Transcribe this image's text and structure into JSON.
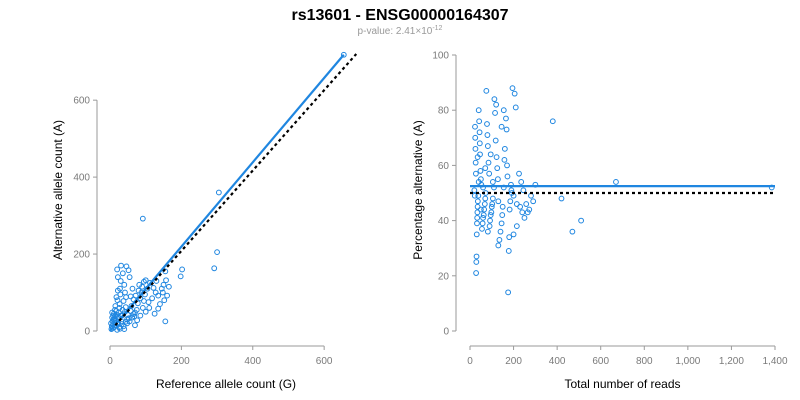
{
  "title": "rs13601 - ENSG00000164307",
  "pvalue_prefix": "p-value: 2.41×10",
  "pvalue_exponent": "-12",
  "colors": {
    "points": "#1f86e0",
    "fit": "#1f86e0",
    "reference": "#000000",
    "axis": "#9a9a9a"
  },
  "chart_data": [
    {
      "type": "scatter",
      "title": "",
      "xlabel": "Reference allele count (G)",
      "ylabel": "Alternative allele count (A)",
      "xlim": [
        0,
        650
      ],
      "ylim": [
        0,
        720
      ],
      "xticks": [
        0,
        200,
        400,
        600
      ],
      "yticks": [
        0,
        200,
        400,
        600
      ],
      "xtick_labels": [
        "0",
        "200",
        "400",
        "600"
      ],
      "ytick_labels": [
        "0",
        "200",
        "400",
        "600"
      ],
      "fit_line": {
        "label": "fitted",
        "x": [
          0,
          655
        ],
        "y": [
          0,
          718
        ]
      },
      "reference_line": {
        "label": "expected",
        "x": [
          15,
          690
        ],
        "y": [
          15,
          720
        ]
      },
      "points": [
        [
          655,
          718
        ],
        [
          305,
          360
        ],
        [
          92,
          292
        ],
        [
          300,
          205
        ],
        [
          292,
          163
        ],
        [
          202,
          160
        ],
        [
          198,
          142
        ],
        [
          155,
          155
        ],
        [
          157,
          132
        ],
        [
          150,
          120
        ],
        [
          148,
          100
        ],
        [
          152,
          80
        ],
        [
          155,
          25
        ],
        [
          140,
          70
        ],
        [
          135,
          92
        ],
        [
          128,
          100
        ],
        [
          122,
          112
        ],
        [
          118,
          85
        ],
        [
          112,
          125
        ],
        [
          105,
          110
        ],
        [
          100,
          132
        ],
        [
          98,
          95
        ],
        [
          95,
          78
        ],
        [
          92,
          60
        ],
        [
          90,
          115
        ],
        [
          88,
          100
        ],
        [
          85,
          85
        ],
        [
          82,
          120
        ],
        [
          80,
          105
        ],
        [
          78,
          72
        ],
        [
          75,
          55
        ],
        [
          72,
          92
        ],
        [
          70,
          48
        ],
        [
          68,
          38
        ],
        [
          66,
          82
        ],
        [
          63,
          110
        ],
        [
          60,
          65
        ],
        [
          58,
          52
        ],
        [
          55,
          140
        ],
        [
          52,
          158
        ],
        [
          50,
          42
        ],
        [
          48,
          30
        ],
        [
          46,
          168
        ],
        [
          45,
          88
        ],
        [
          44,
          62
        ],
        [
          42,
          100
        ],
        [
          40,
          120
        ],
        [
          38,
          78
        ],
        [
          36,
          150
        ],
        [
          35,
          55
        ],
        [
          34,
          40
        ],
        [
          32,
          25
        ],
        [
          31,
          170
        ],
        [
          30,
          130
        ],
        [
          29,
          95
        ],
        [
          28,
          110
        ],
        [
          27,
          70
        ],
        [
          26,
          60
        ],
        [
          25,
          48
        ],
        [
          24,
          35
        ],
        [
          23,
          20
        ],
        [
          22,
          105
        ],
        [
          21,
          80
        ],
        [
          20,
          160
        ],
        [
          19,
          42
        ],
        [
          18,
          52
        ],
        [
          17,
          28
        ],
        [
          16,
          15
        ],
        [
          15,
          65
        ],
        [
          14,
          38
        ],
        [
          13,
          22
        ],
        [
          12,
          10
        ],
        [
          11,
          45
        ],
        [
          10,
          30
        ],
        [
          9,
          18
        ],
        [
          8,
          8
        ],
        [
          7,
          25
        ],
        [
          6,
          35
        ],
        [
          5,
          12
        ],
        [
          4,
          5
        ],
        [
          3,
          20
        ],
        [
          18,
          88
        ],
        [
          22,
          140
        ],
        [
          26,
          10
        ],
        [
          40,
          5
        ],
        [
          55,
          25
        ],
        [
          62,
          35
        ],
        [
          70,
          15
        ],
        [
          85,
          40
        ],
        [
          100,
          50
        ],
        [
          110,
          60
        ],
        [
          125,
          45
        ],
        [
          135,
          58
        ],
        [
          145,
          110
        ],
        [
          160,
          92
        ],
        [
          165,
          115
        ],
        [
          130,
          130
        ],
        [
          108,
          75
        ],
        [
          95,
          128
        ],
        [
          58,
          90
        ],
        [
          48,
          20
        ],
        [
          38,
          12
        ],
        [
          28,
          6
        ],
        [
          20,
          3
        ],
        [
          12,
          28
        ],
        [
          33,
          18
        ],
        [
          44,
          24
        ],
        [
          53,
          33
        ],
        [
          66,
          44
        ],
        [
          76,
          28
        ],
        [
          14,
          55
        ],
        [
          9,
          40
        ],
        [
          6,
          48
        ],
        [
          30,
          40
        ],
        [
          42,
          50
        ]
      ]
    },
    {
      "type": "scatter",
      "title": "",
      "xlabel": "Total number of reads",
      "ylabel": "Percentage alternative (A)",
      "xlim": [
        0,
        1400
      ],
      "ylim": [
        0,
        100
      ],
      "xticks": [
        0,
        200,
        400,
        600,
        800,
        1000,
        1200,
        1400
      ],
      "yticks": [
        0,
        20,
        40,
        60,
        80,
        100
      ],
      "xtick_labels": [
        "0",
        "200",
        "400",
        "600",
        "800",
        "1,000",
        "1,200",
        "1,400"
      ],
      "ytick_labels": [
        "0",
        "20",
        "40",
        "60",
        "80",
        "100"
      ],
      "fit_line": {
        "label": "fitted",
        "x": [
          0,
          1400
        ],
        "y": [
          52.5,
          52.5
        ]
      },
      "reference_line": {
        "label": "expected",
        "x": [
          0,
          1400
        ],
        "y": [
          50,
          50
        ]
      },
      "points": [
        [
          1385,
          52
        ],
        [
          670,
          54
        ],
        [
          380,
          76
        ],
        [
          470,
          36
        ],
        [
          510,
          40
        ],
        [
          420,
          48
        ],
        [
          300,
          53
        ],
        [
          290,
          47
        ],
        [
          280,
          49
        ],
        [
          272,
          44
        ],
        [
          265,
          43
        ],
        [
          250,
          41
        ],
        [
          240,
          43
        ],
        [
          230,
          45
        ],
        [
          215,
          46
        ],
        [
          200,
          49
        ],
        [
          192,
          50
        ],
        [
          190,
          51
        ],
        [
          188,
          53
        ],
        [
          185,
          47
        ],
        [
          182,
          44
        ],
        [
          180,
          34
        ],
        [
          178,
          29
        ],
        [
          175,
          14
        ],
        [
          172,
          56
        ],
        [
          170,
          60
        ],
        [
          168,
          73
        ],
        [
          165,
          77
        ],
        [
          160,
          66
        ],
        [
          158,
          62
        ],
        [
          155,
          52
        ],
        [
          150,
          45
        ],
        [
          148,
          42
        ],
        [
          145,
          39
        ],
        [
          140,
          36
        ],
        [
          135,
          33
        ],
        [
          130,
          31
        ],
        [
          128,
          55
        ],
        [
          125,
          59
        ],
        [
          122,
          63
        ],
        [
          118,
          69
        ],
        [
          115,
          79
        ],
        [
          112,
          84
        ],
        [
          110,
          52
        ],
        [
          105,
          48
        ],
        [
          102,
          46
        ],
        [
          100,
          45
        ],
        [
          98,
          43
        ],
        [
          95,
          42
        ],
        [
          92,
          40
        ],
        [
          90,
          38
        ],
        [
          88,
          57
        ],
        [
          85,
          61
        ],
        [
          82,
          67
        ],
        [
          80,
          71
        ],
        [
          78,
          75
        ],
        [
          75,
          87
        ],
        [
          72,
          50
        ],
        [
          70,
          48
        ],
        [
          68,
          46
        ],
        [
          65,
          44
        ],
        [
          63,
          42
        ],
        [
          60,
          41
        ],
        [
          58,
          39
        ],
        [
          55,
          37
        ],
        [
          52,
          53
        ],
        [
          50,
          55
        ],
        [
          48,
          58
        ],
        [
          46,
          64
        ],
        [
          45,
          68
        ],
        [
          44,
          72
        ],
        [
          42,
          76
        ],
        [
          40,
          80
        ],
        [
          38,
          49
        ],
        [
          36,
          47
        ],
        [
          35,
          45
        ],
        [
          34,
          43
        ],
        [
          33,
          41
        ],
        [
          32,
          39
        ],
        [
          31,
          35
        ],
        [
          30,
          27
        ],
        [
          29,
          25
        ],
        [
          28,
          21
        ],
        [
          27,
          57
        ],
        [
          26,
          61
        ],
        [
          25,
          66
        ],
        [
          24,
          70
        ],
        [
          23,
          74
        ],
        [
          22,
          49
        ],
        [
          20,
          51
        ],
        [
          195,
          88
        ],
        [
          205,
          86
        ],
        [
          210,
          81
        ],
        [
          155,
          80
        ],
        [
          145,
          74
        ],
        [
          120,
          82
        ],
        [
          225,
          57
        ],
        [
          235,
          54
        ],
        [
          245,
          51
        ],
        [
          258,
          46
        ],
        [
          215,
          38
        ],
        [
          200,
          35
        ],
        [
          105,
          54
        ],
        [
          95,
          64
        ],
        [
          60,
          52
        ],
        [
          70,
          59
        ],
        [
          50,
          44
        ],
        [
          40,
          54
        ],
        [
          35,
          63
        ],
        [
          82,
          36
        ],
        [
          130,
          47
        ]
      ]
    }
  ]
}
